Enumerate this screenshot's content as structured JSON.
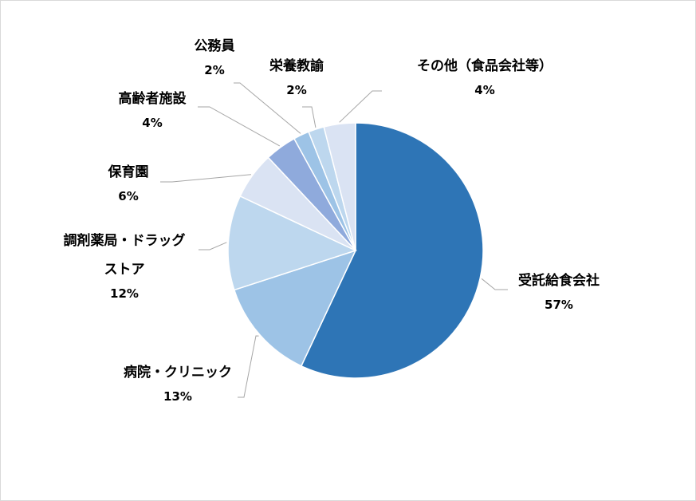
{
  "chart_data": {
    "type": "pie",
    "start_angle_deg": 0,
    "direction": "clockwise",
    "slices": [
      {
        "name": "受託給食会社",
        "value": 57,
        "label": "57%",
        "color": "#2e75b6"
      },
      {
        "name": "病院・クリニック",
        "value": 13,
        "label": "13%",
        "color": "#9dc3e6"
      },
      {
        "name": "調剤薬局・ドラッグストア",
        "label_lines": [
          "調剤薬局・ドラッグ",
          "ストア"
        ],
        "value": 12,
        "label": "12%",
        "color": "#bdd7ee"
      },
      {
        "name": "保育園",
        "value": 6,
        "label": "6%",
        "color": "#dae3f3"
      },
      {
        "name": "高齢者施設",
        "value": 4,
        "label": "4%",
        "color": "#8faadc"
      },
      {
        "name": "公務員",
        "value": 2,
        "label": "2%",
        "color": "#9dc3e6"
      },
      {
        "name": "栄養教諭",
        "value": 2,
        "label": "2%",
        "color": "#bdd7ee"
      },
      {
        "name": "その他（食品会社等）",
        "value": 4,
        "label": "4%",
        "color": "#dae3f3"
      }
    ]
  }
}
